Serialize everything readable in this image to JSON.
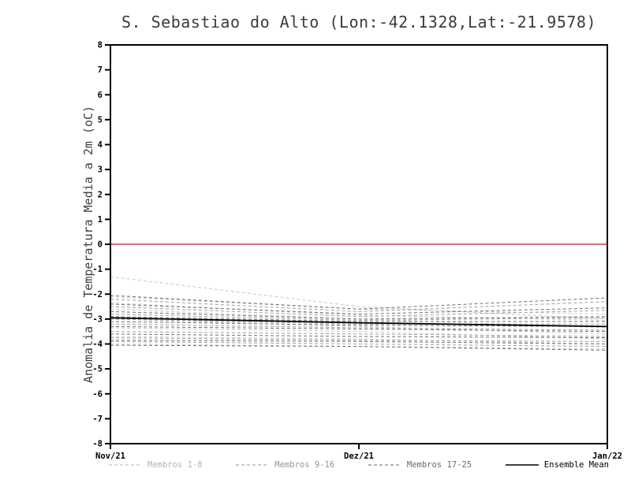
{
  "chart_data": {
    "type": "line",
    "title": "S. Sebastiao do Alto (Lon:-42.1328,Lat:-21.9578)",
    "xlabel": "",
    "ylabel": "Anomalia de Temperatura Media a 2m (oC)",
    "ylim": [
      -8,
      8
    ],
    "yticks": [
      -8,
      -7,
      -6,
      -5,
      -4,
      -3,
      -2,
      -1,
      0,
      1,
      2,
      3,
      4,
      5,
      6,
      7,
      8
    ],
    "x_categories": [
      "Nov/21",
      "Dez/21",
      "Jan/22"
    ],
    "x_positions": [
      0,
      1,
      2
    ],
    "grid": false,
    "zero_line": {
      "y": 0,
      "color": "#fb2c2c"
    },
    "groups": [
      {
        "name": "Membros 1-8",
        "color": "#c6c6c6",
        "dash": "4 3",
        "series": [
          [
            -1.3,
            -2.5,
            -3.0
          ],
          [
            -2.1,
            -2.6,
            -2.8
          ],
          [
            -2.35,
            -2.85,
            -3.05
          ],
          [
            -2.6,
            -3.0,
            -3.35
          ],
          [
            -3.0,
            -3.3,
            -3.6
          ],
          [
            -3.35,
            -3.5,
            -3.8
          ],
          [
            -3.7,
            -3.8,
            -4.0
          ],
          [
            -4.0,
            -4.1,
            -4.2
          ]
        ]
      },
      {
        "name": "Membros 9-16",
        "color": "#9e9e9e",
        "dash": "4 3",
        "series": [
          [
            -2.2,
            -2.7,
            -2.3
          ],
          [
            -2.5,
            -2.9,
            -2.65
          ],
          [
            -2.8,
            -3.05,
            -2.95
          ],
          [
            -3.0,
            -3.2,
            -3.2
          ],
          [
            -3.2,
            -3.35,
            -3.45
          ],
          [
            -3.5,
            -3.6,
            -3.7
          ],
          [
            -3.75,
            -3.85,
            -3.9
          ],
          [
            -3.9,
            -4.0,
            -4.1
          ]
        ]
      },
      {
        "name": "Membros 17-25",
        "color": "#707070",
        "dash": "4 3",
        "series": [
          [
            -2.05,
            -2.6,
            -2.15
          ],
          [
            -2.4,
            -2.8,
            -2.55
          ],
          [
            -2.7,
            -3.0,
            -2.9
          ],
          [
            -2.9,
            -3.1,
            -3.1
          ],
          [
            -3.1,
            -3.25,
            -3.3
          ],
          [
            -3.3,
            -3.4,
            -3.5
          ],
          [
            -3.6,
            -3.7,
            -3.75
          ],
          [
            -3.85,
            -3.9,
            -4.0
          ],
          [
            -4.05,
            -4.1,
            -4.25
          ]
        ]
      }
    ],
    "ensemble_mean": {
      "name": "Ensemble Mean",
      "color": "#000000",
      "values": [
        -2.95,
        -3.15,
        -3.3
      ]
    },
    "legend": [
      {
        "label": "Membros 1-8",
        "color": "#b4b4b4",
        "dash": "4 3"
      },
      {
        "label": "Membros 9-16",
        "color": "#949494",
        "dash": "4 3"
      },
      {
        "label": "Membros 17-25",
        "color": "#6a6a6a",
        "dash": "4 3"
      },
      {
        "label": "Ensemble Mean",
        "color": "#000000",
        "dash": null
      }
    ],
    "legend_position": "bottom"
  }
}
